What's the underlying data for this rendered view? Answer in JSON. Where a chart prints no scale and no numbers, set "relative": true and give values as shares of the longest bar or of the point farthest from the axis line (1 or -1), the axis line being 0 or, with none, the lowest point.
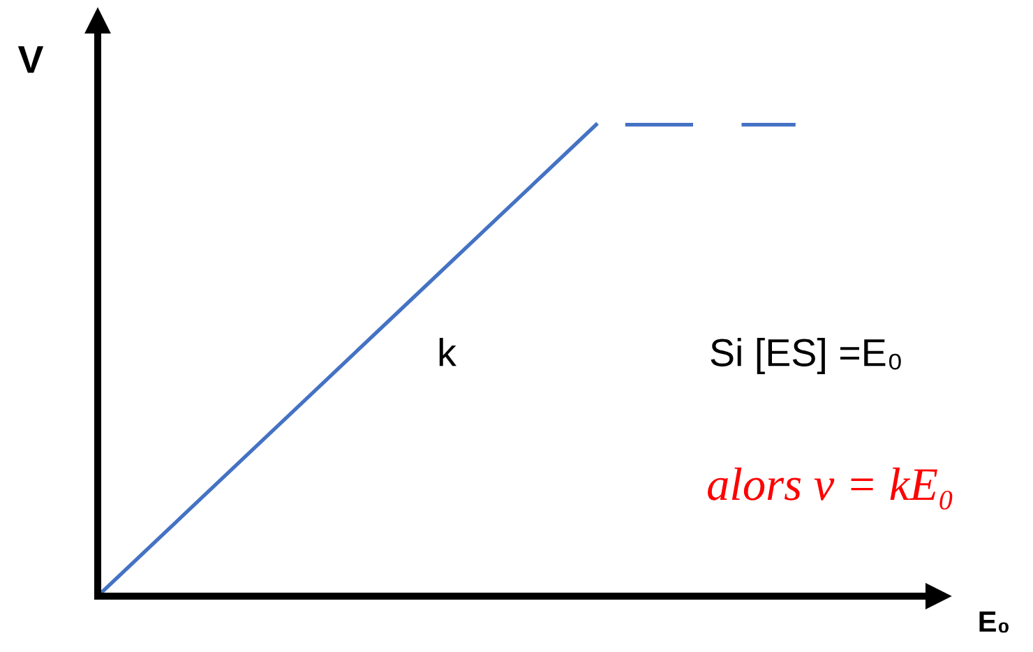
{
  "chart_data": {
    "type": "line",
    "relative": true,
    "xlabel": "E₀",
    "ylabel": "V",
    "categories": [
      null,
      null,
      null,
      null,
      null,
      null,
      null,
      null
    ],
    "series": [
      {
        "color": "#4472c4",
        "line_style": "solid",
        "values": [
          0,
          0.2,
          0.4,
          0.6,
          0.8,
          1,
          null,
          null
        ]
      },
      {
        "color": "#4472c4",
        "line_style": "dashed",
        "values": [
          null,
          null,
          null,
          null,
          null,
          1,
          1,
          1
        ]
      }
    ],
    "annotations": [
      "k",
      "Si [ES] =E₀",
      "alors v = kE₀"
    ]
  }
}
